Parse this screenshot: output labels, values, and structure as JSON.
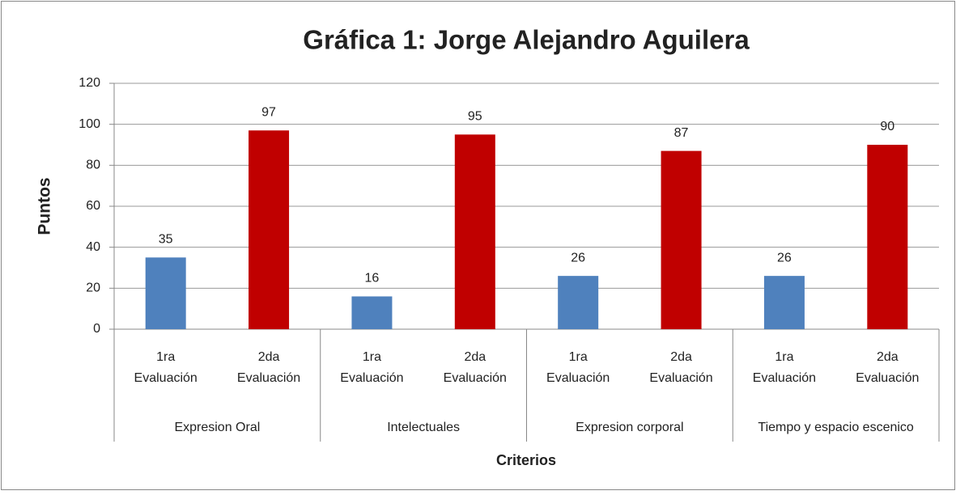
{
  "chart_data": {
    "type": "bar",
    "title": "Gráfica 1: Jorge Alejandro Aguilera",
    "y_label": "Puntos",
    "x_label": "Criterios",
    "categories": [
      "Expresion Oral",
      "Intelectuales",
      "Expresion corporal",
      "Tiempo y espacio escenico"
    ],
    "series": [
      {
        "name": "1ra Evaluación",
        "color": "#4f81bd",
        "values": [
          35,
          16,
          26,
          26
        ]
      },
      {
        "name": "2da Evaluación",
        "color": "#c00000",
        "values": [
          97,
          95,
          87,
          90
        ]
      }
    ],
    "ylim": [
      0,
      120
    ],
    "yticks": [
      0,
      20,
      40,
      60,
      80,
      100,
      120
    ],
    "grid": true
  }
}
